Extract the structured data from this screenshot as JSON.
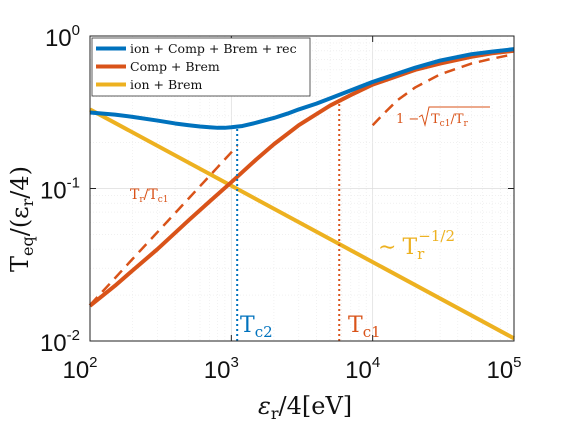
{
  "chart_data": {
    "type": "line",
    "title": "",
    "xlabel_main": "ε",
    "xlabel_sub": "r",
    "xlabel_rest": "/4[eV]",
    "ylabel_main": "T",
    "ylabel_sub": "eq",
    "ylabel_mid": "/(ε",
    "ylabel_sub2": "r",
    "ylabel_rest": "/4)",
    "xscale": "log",
    "yscale": "log",
    "xlim": [
      100,
      100000
    ],
    "ylim": [
      0.01,
      1
    ],
    "grid": true,
    "legend_position": "top-left",
    "x_ticks": [
      {
        "value": 100,
        "base": "10",
        "exp": "2"
      },
      {
        "value": 1000,
        "base": "10",
        "exp": "3"
      },
      {
        "value": 10000,
        "base": "10",
        "exp": "4"
      },
      {
        "value": 100000,
        "base": "10",
        "exp": "5"
      }
    ],
    "y_ticks": [
      {
        "value": 0.01,
        "base": "10",
        "exp": "-2"
      },
      {
        "value": 0.1,
        "base": "10",
        "exp": "-1"
      },
      {
        "value": 1,
        "base": "10",
        "exp": "0"
      }
    ],
    "series": [
      {
        "name": "ion + Comp + Brem + rec",
        "color": "#0072BD",
        "style": "solid",
        "x": [
          100,
          150,
          200,
          300,
          400,
          500,
          600,
          700,
          800,
          900,
          1000,
          1200,
          1500,
          2000,
          2500,
          3000,
          4000,
          5000,
          7000,
          10000,
          20000,
          30000,
          50000,
          70000,
          100000
        ],
        "y": [
          0.315,
          0.305,
          0.295,
          0.279,
          0.267,
          0.26,
          0.255,
          0.252,
          0.25,
          0.25,
          0.252,
          0.257,
          0.27,
          0.29,
          0.31,
          0.33,
          0.36,
          0.39,
          0.44,
          0.5,
          0.62,
          0.69,
          0.76,
          0.79,
          0.82
        ]
      },
      {
        "name": "Comp + Brem",
        "color": "#D95319",
        "style": "solid",
        "x": [
          100,
          150,
          200,
          300,
          500,
          700,
          1000,
          1500,
          2000,
          3000,
          5000,
          7000,
          10000,
          20000,
          30000,
          50000,
          70000,
          100000
        ],
        "y": [
          0.017,
          0.023,
          0.029,
          0.04,
          0.062,
          0.082,
          0.11,
          0.155,
          0.195,
          0.26,
          0.35,
          0.41,
          0.48,
          0.6,
          0.66,
          0.73,
          0.77,
          0.8
        ]
      },
      {
        "name": "ion + Brem",
        "color": "#EDB120",
        "style": "solid",
        "x": [
          100,
          100000
        ],
        "y": [
          0.33,
          0.0104
        ]
      },
      {
        "name": "T_r/T_c1",
        "color": "#D95319",
        "style": "dashed",
        "x": [
          100,
          150,
          200,
          300,
          500,
          800,
          1100
        ],
        "y": [
          0.0172,
          0.0258,
          0.0345,
          0.0517,
          0.0862,
          0.138,
          0.19
        ]
      },
      {
        "name": "1 - sqrt(T_c1/T_r)",
        "color": "#D95319",
        "style": "dashed",
        "x": [
          10000,
          12000,
          15000,
          20000,
          30000,
          50000,
          70000,
          100000
        ],
        "y": [
          0.26,
          0.31,
          0.38,
          0.46,
          0.56,
          0.66,
          0.71,
          0.76
        ]
      }
    ],
    "vlines": [
      {
        "label": "T_c2",
        "x": 1100,
        "y_top": 0.257,
        "color": "#0072BD"
      },
      {
        "label": "T_c1",
        "x": 5800,
        "y_top": 0.4,
        "color": "#D95319"
      }
    ],
    "annotations": {
      "tc2_main": "T",
      "tc2_sub": "c2",
      "tc1_main": "T",
      "tc1_sub": "c1",
      "ratio_a": "T",
      "ratio_a_sub": "r",
      "ratio_slash": "/",
      "ratio_b": "T",
      "ratio_b_sub": "c1",
      "sqrt_prefix": "1 −",
      "sqrt_a": "T",
      "sqrt_a_sub": "c1",
      "sqrt_slash": "/",
      "sqrt_b": "T",
      "sqrt_b_sub": "r",
      "power_prefix": "∼",
      "power_main": "T",
      "power_sub": "r",
      "power_exp": "−1/2"
    },
    "legend": [
      {
        "label": "ion + Comp + Brem + rec",
        "color": "#0072BD"
      },
      {
        "label": "Comp + Brem",
        "color": "#D95319"
      },
      {
        "label": "ion + Brem",
        "color": "#EDB120"
      }
    ]
  }
}
